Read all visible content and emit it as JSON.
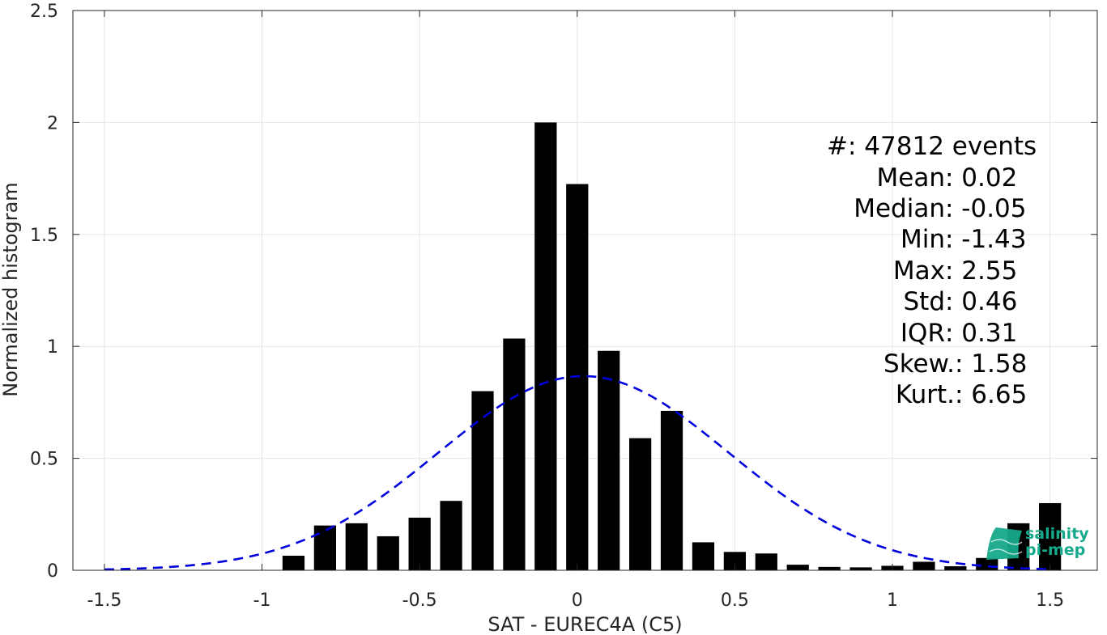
{
  "chart_data": {
    "type": "bar",
    "xlabel": "SAT - EUREC4A (C5)",
    "ylabel": "Normalized histogram",
    "xlim": [
      -1.6,
      1.65
    ],
    "ylim": [
      0,
      2.5
    ],
    "grid": true,
    "x_ticks": [
      -1.5,
      -1,
      -0.5,
      0,
      0.5,
      1,
      1.5
    ],
    "x_tick_labels": [
      "-1.5",
      "-1",
      "-0.5",
      "0",
      "0.5",
      "1",
      "1.5"
    ],
    "y_ticks": [
      0,
      0.5,
      1,
      1.5,
      2,
      2.5
    ],
    "y_tick_labels": [
      "0",
      "0.5",
      "1",
      "1.5",
      "2",
      "2.5"
    ],
    "bar_width": 0.07,
    "bar_color": "#000000",
    "bars": {
      "x": [
        -0.9,
        -0.8,
        -0.7,
        -0.6,
        -0.5,
        -0.4,
        -0.3,
        -0.2,
        -0.1,
        0.0,
        0.1,
        0.2,
        0.3,
        0.4,
        0.5,
        0.6,
        0.7,
        0.8,
        0.9,
        1.0,
        1.1,
        1.2,
        1.3,
        1.4,
        1.5
      ],
      "values": [
        0.065,
        0.2,
        0.21,
        0.152,
        0.235,
        0.31,
        0.8,
        1.035,
        2.0,
        1.725,
        0.98,
        0.59,
        0.712,
        0.125,
        0.082,
        0.075,
        0.025,
        0.015,
        0.013,
        0.02,
        0.038,
        0.018,
        0.055,
        0.21,
        0.3
      ]
    },
    "fit": {
      "type": "normal",
      "mean": 0.02,
      "std": 0.46,
      "x_range": [
        -1.5,
        1.5
      ],
      "color": "#0000dd",
      "style": "dashed"
    },
    "stats": [
      {
        "label": "#",
        "sep": " : ",
        "value": "47812 events"
      },
      {
        "label": "Mean",
        "sep": " : ",
        "value": "0.02"
      },
      {
        "label": "Median",
        "sep": " : ",
        "value": "-0.05"
      },
      {
        "label": "Min",
        "sep": " : ",
        "value": "-1.43"
      },
      {
        "label": "Max",
        "sep": " : ",
        "value": "2.55"
      },
      {
        "label": "Std",
        "sep": " : ",
        "value": "0.46"
      },
      {
        "label": "IQR",
        "sep": " : ",
        "value": "0.31"
      },
      {
        "label": "Skew.",
        "sep": " : ",
        "value": "1.58"
      },
      {
        "label": "Kurt.",
        "sep": " : ",
        "value": "6.65"
      }
    ],
    "logo": {
      "line1": "salinity",
      "line2": "pi-mep",
      "color": "#16a98b"
    }
  }
}
